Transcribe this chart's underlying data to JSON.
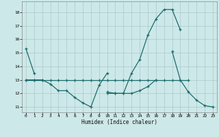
{
  "xlabel": "Humidex (Indice chaleur)",
  "x": [
    0,
    1,
    2,
    3,
    4,
    5,
    6,
    7,
    8,
    9,
    10,
    11,
    12,
    13,
    14,
    15,
    16,
    17,
    18,
    19,
    20,
    21,
    22,
    23
  ],
  "line1": [
    15.3,
    13.5,
    null,
    null,
    null,
    null,
    null,
    null,
    null,
    null,
    null,
    null,
    null,
    null,
    null,
    null,
    null,
    null,
    null,
    null,
    null,
    null,
    null,
    null
  ],
  "line2": [
    13.0,
    13.0,
    13.0,
    12.7,
    12.2,
    12.2,
    11.7,
    11.3,
    11.0,
    12.6,
    13.5,
    null,
    null,
    null,
    null,
    null,
    null,
    null,
    null,
    null,
    null,
    null,
    null,
    null
  ],
  "line3": [
    null,
    null,
    null,
    null,
    null,
    null,
    null,
    null,
    null,
    null,
    12.1,
    12.0,
    12.0,
    13.5,
    14.5,
    16.3,
    17.5,
    18.2,
    18.2,
    16.7,
    null,
    null,
    null,
    null
  ],
  "line4": [
    13.0,
    13.0,
    13.0,
    13.0,
    13.0,
    13.0,
    13.0,
    13.0,
    13.0,
    13.0,
    13.0,
    13.0,
    13.0,
    13.0,
    13.0,
    13.0,
    13.0,
    13.0,
    13.0,
    13.0,
    13.0,
    null,
    null,
    null
  ],
  "line5": [
    null,
    null,
    null,
    null,
    null,
    null,
    null,
    null,
    null,
    null,
    12.0,
    12.0,
    12.0,
    12.0,
    12.2,
    12.5,
    13.0,
    null,
    15.1,
    13.0,
    12.1,
    11.5,
    11.1,
    11.0
  ],
  "bg_color": "#cde8e8",
  "grid_color": "#aac8cc",
  "line_color": "#1a6b6b",
  "yticks": [
    11,
    12,
    13,
    14,
    15,
    16,
    17,
    18
  ],
  "xticks": [
    0,
    1,
    2,
    3,
    4,
    5,
    6,
    7,
    8,
    9,
    10,
    11,
    12,
    13,
    14,
    15,
    16,
    17,
    18,
    19,
    20,
    21,
    22,
    23
  ]
}
